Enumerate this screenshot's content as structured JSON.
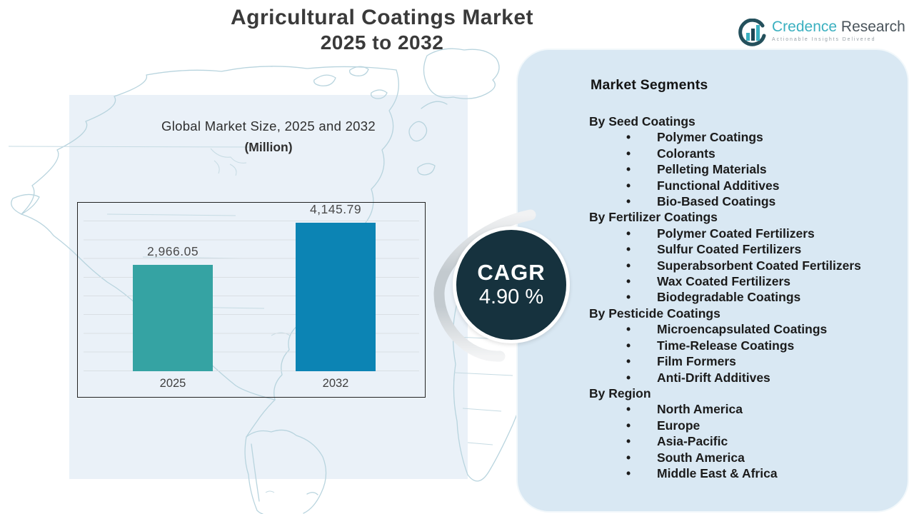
{
  "title": {
    "line1": "Agricultural Coatings Market",
    "line2": "2025 to 2032"
  },
  "logo": {
    "name_part1": "Credence",
    "name_part2": "Research",
    "tagline": "Actionable Insights Delivered"
  },
  "chart": {
    "title_line1": "Global Market Size, 2025 and 2032",
    "title_line2": "(Million)"
  },
  "chart_data": {
    "type": "bar",
    "title": "Global Market Size, 2025 and 2032 (Million)",
    "categories": [
      "2025",
      "2032"
    ],
    "values": [
      2966.05,
      4145.79
    ],
    "value_labels": [
      "2,966.05",
      "4,145.79"
    ],
    "xlabel": "",
    "ylabel": "",
    "ylim": [
      0,
      4700
    ],
    "grid": true,
    "legend": "none",
    "bar_colors": [
      "#35a3a3",
      "#0c84b4"
    ]
  },
  "cagr": {
    "label": "CAGR",
    "value": "4.90 %"
  },
  "segments": {
    "heading": "Market Segments",
    "groups": [
      {
        "label": "By Seed Coatings",
        "items": [
          "Polymer Coatings",
          "Colorants",
          "Pelleting Materials",
          "Functional Additives",
          "Bio-Based Coatings"
        ]
      },
      {
        "label": "By Fertilizer Coatings",
        "items": [
          "Polymer Coated Fertilizers",
          "Sulfur Coated Fertilizers",
          "Superabsorbent Coated Fertilizers",
          "Wax Coated Fertilizers",
          "Biodegradable Coatings"
        ]
      },
      {
        "label": "By Pesticide Coatings",
        "items": [
          "Microencapsulated Coatings",
          "Time-Release Coatings",
          "Film Formers",
          "Anti-Drift Additives"
        ]
      },
      {
        "label": "By Region",
        "items": [
          "North America",
          "Europe",
          "Asia-Pacific",
          "South America",
          "Middle East & Africa"
        ]
      }
    ]
  },
  "colors": {
    "cagr_circle": "#16323e",
    "segments_panel_bg": "#d9e8f3",
    "chart_panel_bg": "#eaf1f8",
    "map_line": "#b8d4de",
    "logo_teal": "#3ab0c0",
    "logo_dark": "#4a545b",
    "title_text": "#3a3a3a"
  }
}
